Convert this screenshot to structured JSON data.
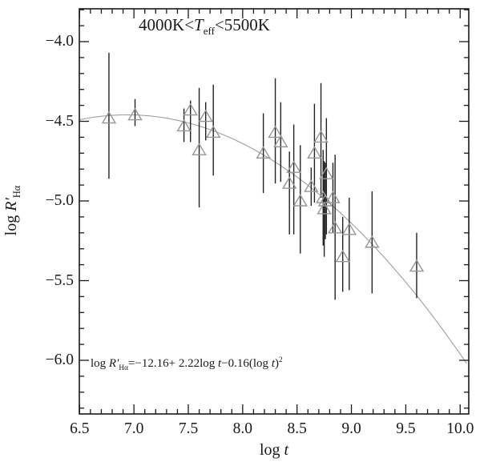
{
  "figure": {
    "annotation_title": {
      "pre": "4000K<",
      "var": "T",
      "sub": "eff",
      "post": "<5500K"
    },
    "equation": {
      "pre": "log ",
      "var": "R′",
      "sub": "Hα",
      "mid1": "=−12.16+ 2.22log ",
      "t1": "t",
      "mid2": "−0.16(log ",
      "t2": "t",
      "close": ")",
      "sup": "2"
    },
    "xlabel": {
      "pre": "log ",
      "var": "t"
    },
    "ylabel": {
      "pre": "log ",
      "var": "R′",
      "sub": "Hα"
    }
  },
  "chart_data": {
    "type": "scatter",
    "title": "4000K < T_eff < 5500K",
    "xlabel": "log t",
    "ylabel": "log R'_Halpha",
    "xlim": [
      6.5,
      10.08
    ],
    "ylim": [
      -6.34,
      -3.79
    ],
    "grid": false,
    "legend": "none",
    "marker": "open-triangle",
    "minor_tick_step": 0.1,
    "xticks": [
      {
        "v": 6.5,
        "label": "6.5"
      },
      {
        "v": 7.0,
        "label": "7.0"
      },
      {
        "v": 7.5,
        "label": "7.5"
      },
      {
        "v": 8.0,
        "label": "8.0"
      },
      {
        "v": 8.5,
        "label": "8.5"
      },
      {
        "v": 9.0,
        "label": "9.0"
      },
      {
        "v": 9.5,
        "label": "9.5"
      },
      {
        "v": 10.0,
        "label": "10.0"
      }
    ],
    "yticks": [
      {
        "v": -4.0,
        "label": "−4.0"
      },
      {
        "v": -4.5,
        "label": "−4.5"
      },
      {
        "v": -5.0,
        "label": "−5.0"
      },
      {
        "v": -5.5,
        "label": "−5.5"
      },
      {
        "v": -6.0,
        "label": "−6.0"
      }
    ],
    "fit": {
      "label": "log R'_Halpha = -12.16 + 2.22 log t - 0.16 (log t)^2",
      "c0": -12.16,
      "c1": 2.22,
      "c2": -0.16
    },
    "points": [
      {
        "x": 6.77,
        "y": -4.48,
        "ylo": -4.86,
        "yhi": -4.07
      },
      {
        "x": 7.01,
        "y": -4.46,
        "ylo": -4.53,
        "yhi": -4.36
      },
      {
        "x": 7.46,
        "y": -4.53,
        "ylo": -4.63,
        "yhi": -4.42
      },
      {
        "x": 7.52,
        "y": -4.43,
        "ylo": -4.63,
        "yhi": -4.37
      },
      {
        "x": 7.6,
        "y": -4.68,
        "ylo": -5.04,
        "yhi": -4.29
      },
      {
        "x": 7.66,
        "y": -4.47,
        "ylo": -4.62,
        "yhi": -4.38
      },
      {
        "x": 7.73,
        "y": -4.57,
        "ylo": -4.84,
        "yhi": -4.27
      },
      {
        "x": 8.19,
        "y": -4.7,
        "ylo": -4.95,
        "yhi": -4.45
      },
      {
        "x": 8.3,
        "y": -4.57,
        "ylo": -4.89,
        "yhi": -4.23
      },
      {
        "x": 8.35,
        "y": -4.63,
        "ylo": -4.88,
        "yhi": -4.38
      },
      {
        "x": 8.43,
        "y": -4.89,
        "ylo": -5.21,
        "yhi": -4.69
      },
      {
        "x": 8.47,
        "y": -4.79,
        "ylo": -5.21,
        "yhi": -4.52
      },
      {
        "x": 8.53,
        "y": -5.0,
        "ylo": -5.33,
        "yhi": -4.65
      },
      {
        "x": 8.63,
        "y": -4.91,
        "ylo": -5.03,
        "yhi": -4.79
      },
      {
        "x": 8.66,
        "y": -4.7,
        "ylo": -5.01,
        "yhi": -4.39
      },
      {
        "x": 8.72,
        "y": -4.6,
        "ylo": -4.98,
        "yhi": -4.26
      },
      {
        "x": 8.74,
        "y": -4.98,
        "ylo": -5.28,
        "yhi": -4.68
      },
      {
        "x": 8.75,
        "y": -5.05,
        "ylo": -5.35,
        "yhi": -4.75
      },
      {
        "x": 8.76,
        "y": -5.0,
        "ylo": -5.24,
        "yhi": -4.76
      },
      {
        "x": 8.77,
        "y": -4.83,
        "ylo": -5.21,
        "yhi": -4.48
      },
      {
        "x": 8.83,
        "y": -4.98,
        "ylo": -5.2,
        "yhi": -4.76
      },
      {
        "x": 8.85,
        "y": -5.17,
        "ylo": -5.62,
        "yhi": -4.71
      },
      {
        "x": 8.92,
        "y": -5.35,
        "ylo": -5.57,
        "yhi": -5.1
      },
      {
        "x": 8.98,
        "y": -5.18,
        "ylo": -5.56,
        "yhi": -4.98
      },
      {
        "x": 9.19,
        "y": -5.26,
        "ylo": -5.58,
        "yhi": -4.94
      },
      {
        "x": 9.6,
        "y": -5.41,
        "ylo": -5.61,
        "yhi": -5.2
      }
    ],
    "colors": {
      "marker": "#969696",
      "error_bar": "#222222",
      "fit_line": "#a0a0a0",
      "axis": "#1a1a1a",
      "text": "#1a1a1a",
      "background": "#ffffff"
    }
  }
}
